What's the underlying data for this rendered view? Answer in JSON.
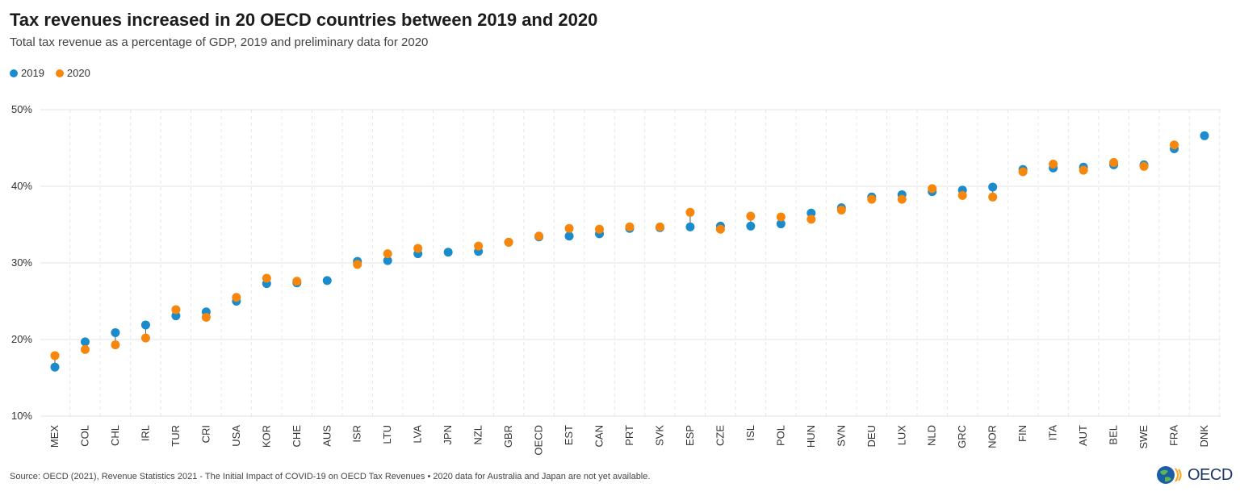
{
  "chart_data": {
    "type": "scatter",
    "title": "Tax revenues increased in 20 OECD countries between 2019 and 2020",
    "subtitle": "Total tax revenue as a percentage of GDP, 2019 and preliminary data for 2020",
    "xlabel": "",
    "ylabel": "",
    "ylim": [
      10,
      50
    ],
    "yticks": [
      10,
      20,
      30,
      40,
      50
    ],
    "ytick_suffix": "%",
    "grid": true,
    "legend_position": "top-left",
    "categories": [
      "MEX",
      "COL",
      "CHL",
      "IRL",
      "TUR",
      "CRI",
      "USA",
      "KOR",
      "CHE",
      "AUS",
      "ISR",
      "LTU",
      "LVA",
      "JPN",
      "NZL",
      "GBR",
      "OECD",
      "EST",
      "CAN",
      "PRT",
      "SVK",
      "ESP",
      "CZE",
      "ISL",
      "POL",
      "HUN",
      "SVN",
      "DEU",
      "LUX",
      "NLD",
      "GRC",
      "NOR",
      "FIN",
      "ITA",
      "AUT",
      "BEL",
      "SWE",
      "FRA",
      "DNK"
    ],
    "series": [
      {
        "name": "2019",
        "color": "#1b8ccb",
        "values": [
          16.4,
          19.7,
          20.9,
          21.9,
          23.1,
          23.6,
          25.0,
          27.3,
          27.4,
          27.7,
          30.2,
          30.3,
          31.2,
          31.4,
          31.5,
          32.7,
          33.4,
          33.5,
          33.8,
          34.5,
          34.6,
          34.7,
          34.8,
          34.8,
          35.1,
          36.5,
          37.2,
          38.6,
          38.9,
          39.3,
          39.5,
          39.9,
          42.2,
          42.4,
          42.5,
          42.8,
          42.8,
          44.9,
          46.6
        ]
      },
      {
        "name": "2020",
        "color": "#f7860d",
        "values": [
          17.9,
          18.7,
          19.3,
          20.2,
          23.9,
          22.9,
          25.5,
          28.0,
          27.6,
          null,
          29.8,
          31.2,
          31.9,
          null,
          32.2,
          32.7,
          33.5,
          34.5,
          34.4,
          34.7,
          34.7,
          36.6,
          34.4,
          36.1,
          36.0,
          35.7,
          36.9,
          38.3,
          38.3,
          39.7,
          38.8,
          38.6,
          41.9,
          42.9,
          42.1,
          43.1,
          42.6,
          45.4,
          null
        ]
      }
    ]
  },
  "source_text": "Source: OECD (2021), Revenue Statistics 2021 - The Initial Impact of COVID-19 on OECD Tax Revenues • 2020 data for Australia and Japan are not yet available.",
  "logo_text": "OECD",
  "colors": {
    "accent_2019": "#1b8ccb",
    "accent_2020": "#f7860d",
    "connector": "#555555",
    "grid": "#e3e3e3"
  }
}
